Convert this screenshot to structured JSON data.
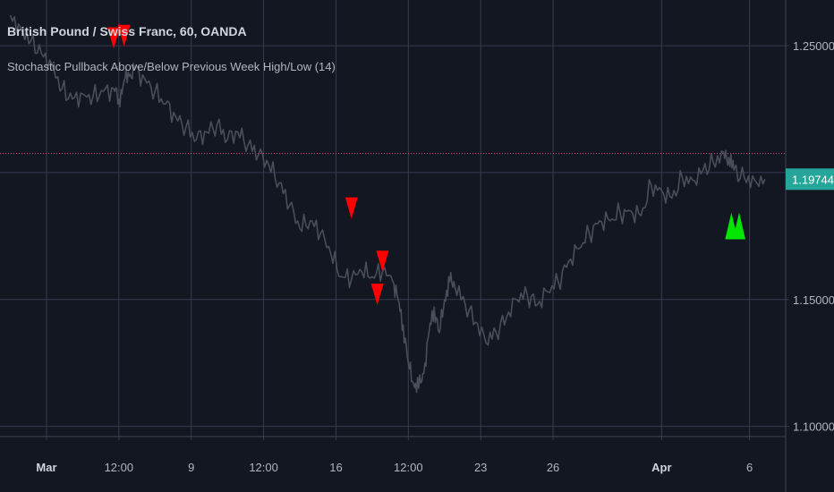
{
  "header": {
    "symbol_title": "British Pound / Swiss Franc, 60, OANDA",
    "indicator_title": "Stochastic Pullback Above/Below Previous Week High/Low (14)"
  },
  "colors": {
    "background": "#131722",
    "grid": "#363c4e",
    "price_line": "#4a4e5a",
    "axis_text": "#b2b5be",
    "hline": "#e0507a",
    "price_tag_bg": "#26a69a",
    "sell_marker": "#ff0000",
    "buy_marker": "#00e600"
  },
  "chart_data": {
    "type": "line",
    "xlabel": "",
    "ylabel": "",
    "ylim": [
      1.096,
      1.268
    ],
    "xlim": [
      -2,
      150
    ],
    "y_ticks": [
      1.25,
      1.2,
      1.15,
      1.1
    ],
    "y_tick_labels": [
      "1.25000",
      "1.20000",
      "1.15000",
      "1.10000"
    ],
    "x_ticks": [
      {
        "x": 7,
        "label": "Mar",
        "bold": true
      },
      {
        "x": 21,
        "label": "12:00",
        "bold": false
      },
      {
        "x": 35,
        "label": "9",
        "bold": false
      },
      {
        "x": 49,
        "label": "12:00",
        "bold": false
      },
      {
        "x": 63,
        "label": "16",
        "bold": false
      },
      {
        "x": 77,
        "label": "12:00",
        "bold": false
      },
      {
        "x": 91,
        "label": "23",
        "bold": false
      },
      {
        "x": 105,
        "label": "26",
        "bold": false
      },
      {
        "x": 126,
        "label": "Apr",
        "bold": true
      },
      {
        "x": 143,
        "label": "6",
        "bold": false
      }
    ],
    "grid": true,
    "series": [
      {
        "values": [
          [
            0,
            1.262
          ],
          [
            2,
            1.257
          ],
          [
            4,
            1.252
          ],
          [
            6,
            1.247
          ],
          [
            8,
            1.243
          ],
          [
            10,
            1.233
          ],
          [
            12,
            1.229
          ],
          [
            14,
            1.231
          ],
          [
            16,
            1.23
          ],
          [
            18,
            1.232
          ],
          [
            20,
            1.233
          ],
          [
            21,
            1.229
          ],
          [
            22,
            1.236
          ],
          [
            23,
            1.238
          ],
          [
            24,
            1.241
          ],
          [
            26,
            1.237
          ],
          [
            28,
            1.232
          ],
          [
            30,
            1.227
          ],
          [
            32,
            1.222
          ],
          [
            34,
            1.218
          ],
          [
            36,
            1.213
          ],
          [
            38,
            1.216
          ],
          [
            40,
            1.219
          ],
          [
            42,
            1.213
          ],
          [
            44,
            1.216
          ],
          [
            46,
            1.211
          ],
          [
            48,
            1.207
          ],
          [
            50,
            1.203
          ],
          [
            52,
            1.196
          ],
          [
            54,
            1.187
          ],
          [
            56,
            1.178
          ],
          [
            58,
            1.181
          ],
          [
            60,
            1.176
          ],
          [
            62,
            1.168
          ],
          [
            64,
            1.159
          ],
          [
            66,
            1.158
          ],
          [
            68,
            1.161
          ],
          [
            70,
            1.159
          ],
          [
            72,
            1.161
          ],
          [
            74,
            1.157
          ],
          [
            75,
            1.15
          ],
          [
            76,
            1.14
          ],
          [
            77,
            1.125
          ],
          [
            78,
            1.117
          ],
          [
            79,
            1.115
          ],
          [
            80,
            1.121
          ],
          [
            81,
            1.137
          ],
          [
            82,
            1.147
          ],
          [
            83,
            1.137
          ],
          [
            84,
            1.15
          ],
          [
            85,
            1.157
          ],
          [
            86,
            1.155
          ],
          [
            88,
            1.148
          ],
          [
            90,
            1.141
          ],
          [
            92,
            1.133
          ],
          [
            94,
            1.137
          ],
          [
            96,
            1.143
          ],
          [
            98,
            1.15
          ],
          [
            100,
            1.152
          ],
          [
            102,
            1.148
          ],
          [
            104,
            1.153
          ],
          [
            106,
            1.157
          ],
          [
            108,
            1.165
          ],
          [
            110,
            1.17
          ],
          [
            112,
            1.176
          ],
          [
            114,
            1.181
          ],
          [
            116,
            1.181
          ],
          [
            118,
            1.184
          ],
          [
            120,
            1.185
          ],
          [
            122,
            1.183
          ],
          [
            124,
            1.195
          ],
          [
            126,
            1.193
          ],
          [
            128,
            1.19
          ],
          [
            130,
            1.198
          ],
          [
            132,
            1.197
          ],
          [
            134,
            1.201
          ],
          [
            136,
            1.204
          ],
          [
            138,
            1.208
          ],
          [
            139,
            1.206
          ],
          [
            140,
            1.201
          ],
          [
            142,
            1.198
          ],
          [
            144,
            1.197
          ],
          [
            146,
            1.1974
          ]
        ]
      }
    ],
    "horizontal_line": 1.2075,
    "last_price": "1.19744",
    "last_price_value": 1.1974,
    "sell_markers": [
      [
        20,
        1.253
      ],
      [
        22,
        1.254
      ],
      [
        66,
        1.186
      ],
      [
        72,
        1.165
      ],
      [
        71,
        1.152
      ]
    ],
    "buy_markers": [
      [
        139.5,
        1.179
      ],
      [
        141,
        1.179
      ]
    ]
  }
}
